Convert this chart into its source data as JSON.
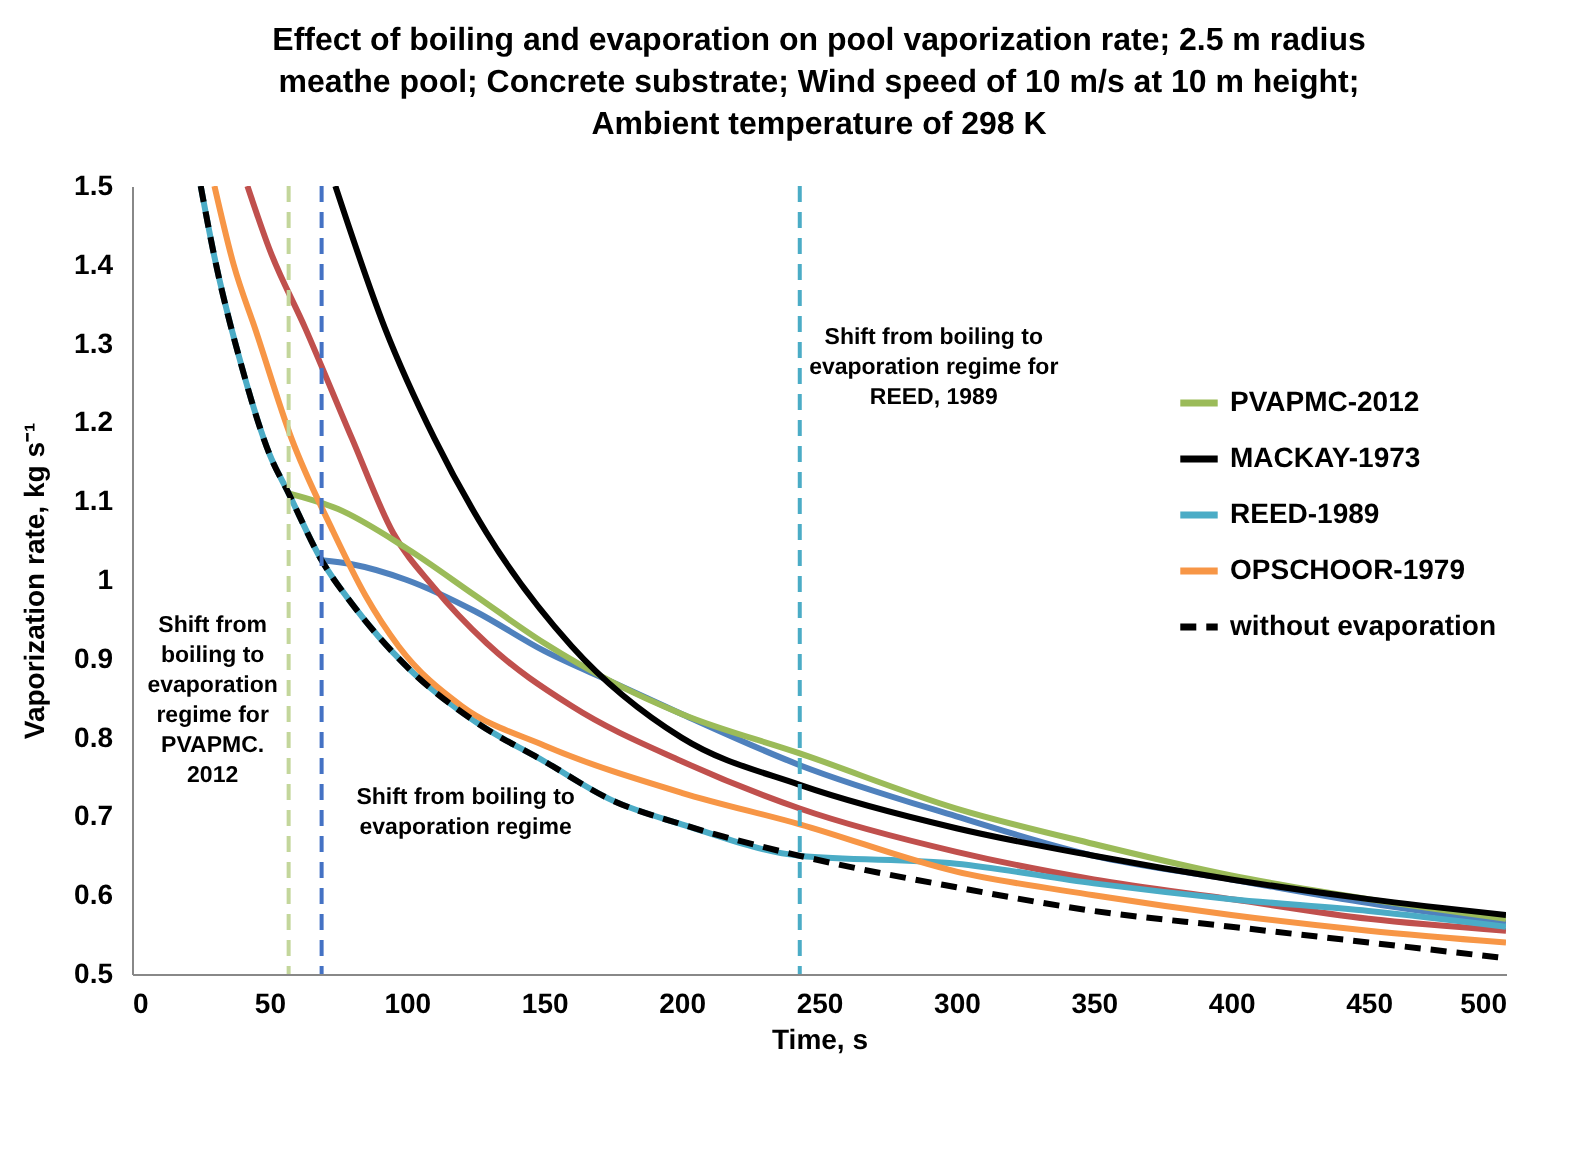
{
  "chart_data": {
    "type": "line",
    "title": "Effect of boiling and evaporation on pool vaporization rate; 2.5 m radius\nmeathe pool; Concrete substrate; Wind speed of 10 m/s at 10 m height;\nAmbient temperature of 298 K",
    "xlabel": "Time, s",
    "ylabel": "Vaporization rate, kg s⁻¹",
    "xlim": [
      0,
      500
    ],
    "xticks": [
      0,
      50,
      100,
      150,
      200,
      250,
      300,
      350,
      400,
      450,
      500
    ],
    "ylim": [
      0.5,
      1.5
    ],
    "yticks": [
      0.5,
      0.6,
      0.7,
      0.8,
      0.9,
      1,
      1.1,
      1.2,
      1.3,
      1.4,
      1.5
    ],
    "grid": false,
    "legend": "right",
    "line_style": "solid",
    "marker": "none",
    "series": [
      {
        "color": "#4f81bd",
        "x": [
          69,
          80,
          100,
          125,
          150,
          175,
          200,
          243,
          300,
          350,
          400,
          450,
          500
        ],
        "values": [
          1.025,
          1.02,
          1.0,
          0.96,
          0.91,
          0.87,
          0.83,
          0.765,
          0.7,
          0.65,
          0.62,
          0.59,
          0.565
        ]
      },
      {
        "color": "#c0504d",
        "x": [
          42,
          50,
          63,
          80,
          95,
          110,
          129,
          160,
          200,
          243,
          300,
          350,
          400,
          450,
          500
        ],
        "values": [
          1.5,
          1.42,
          1.32,
          1.18,
          1.06,
          0.99,
          0.92,
          0.84,
          0.77,
          0.71,
          0.655,
          0.62,
          0.595,
          0.57,
          0.555
        ]
      },
      {
        "name": "PVAPMC-2012",
        "color": "#9bbb59",
        "x": [
          57,
          75,
          100,
          125,
          150,
          175,
          200,
          243,
          300,
          350,
          400,
          450,
          500
        ],
        "values": [
          1.11,
          1.09,
          1.04,
          0.98,
          0.92,
          0.87,
          0.83,
          0.78,
          0.71,
          0.665,
          0.625,
          0.595,
          0.57
        ]
      },
      {
        "name": "MACKAY-1973",
        "color": "#000000",
        "x": [
          74,
          92,
          110,
          129,
          160,
          200,
          243,
          300,
          350,
          400,
          450,
          500
        ],
        "values": [
          1.5,
          1.32,
          1.18,
          1.06,
          0.916,
          0.8,
          0.74,
          0.685,
          0.65,
          0.62,
          0.595,
          0.575
        ]
      },
      {
        "name": "REED-1989",
        "color": "#4bacc6",
        "x": [
          25,
          30,
          40,
          50,
          57,
          69,
          80,
          100,
          125,
          150,
          175,
          200,
          243,
          300,
          350,
          400,
          450,
          500
        ],
        "values": [
          1.5,
          1.41,
          1.27,
          1.16,
          1.11,
          1.025,
          0.97,
          0.89,
          0.82,
          0.77,
          0.72,
          0.69,
          0.65,
          0.64,
          0.615,
          0.595,
          0.58,
          0.56
        ]
      },
      {
        "name": "OPSCHOOR-1979",
        "color": "#f79646",
        "x": [
          30,
          37,
          45,
          58,
          73,
          85,
          97,
          120,
          150,
          200,
          243,
          300,
          350,
          400,
          450,
          500
        ],
        "values": [
          1.5,
          1.4,
          1.317,
          1.18,
          1.063,
          0.98,
          0.916,
          0.84,
          0.79,
          0.73,
          0.69,
          0.63,
          0.6,
          0.575,
          0.555,
          0.54
        ]
      },
      {
        "name": "without evaporation",
        "color": "#000000",
        "line_style": "dashed",
        "x": [
          25,
          30,
          40,
          50,
          57,
          69,
          80,
          100,
          125,
          150,
          175,
          200,
          243,
          300,
          350,
          400,
          450,
          500
        ],
        "values": [
          1.5,
          1.41,
          1.27,
          1.16,
          1.11,
          1.025,
          0.97,
          0.89,
          0.82,
          0.77,
          0.72,
          0.69,
          0.65,
          0.61,
          0.58,
          0.56,
          0.54,
          0.52
        ]
      }
    ],
    "ref_lines": [
      {
        "axis": "x",
        "value": 57,
        "color": "#c3d69b",
        "line_style": "dashed",
        "label": "Shift from\nboiling to\nevaporation\nregime for\nPVAPMC.\n2012"
      },
      {
        "axis": "x",
        "value": 69,
        "color": "#4472c4",
        "line_style": "dashed",
        "label": "Shift from boiling to\nevaporation regime"
      },
      {
        "axis": "x",
        "value": 243,
        "color": "#4bacc6",
        "line_style": "dashed",
        "label": "Shift from boiling to\nevaporation regime for\nREED, 1989"
      }
    ]
  }
}
